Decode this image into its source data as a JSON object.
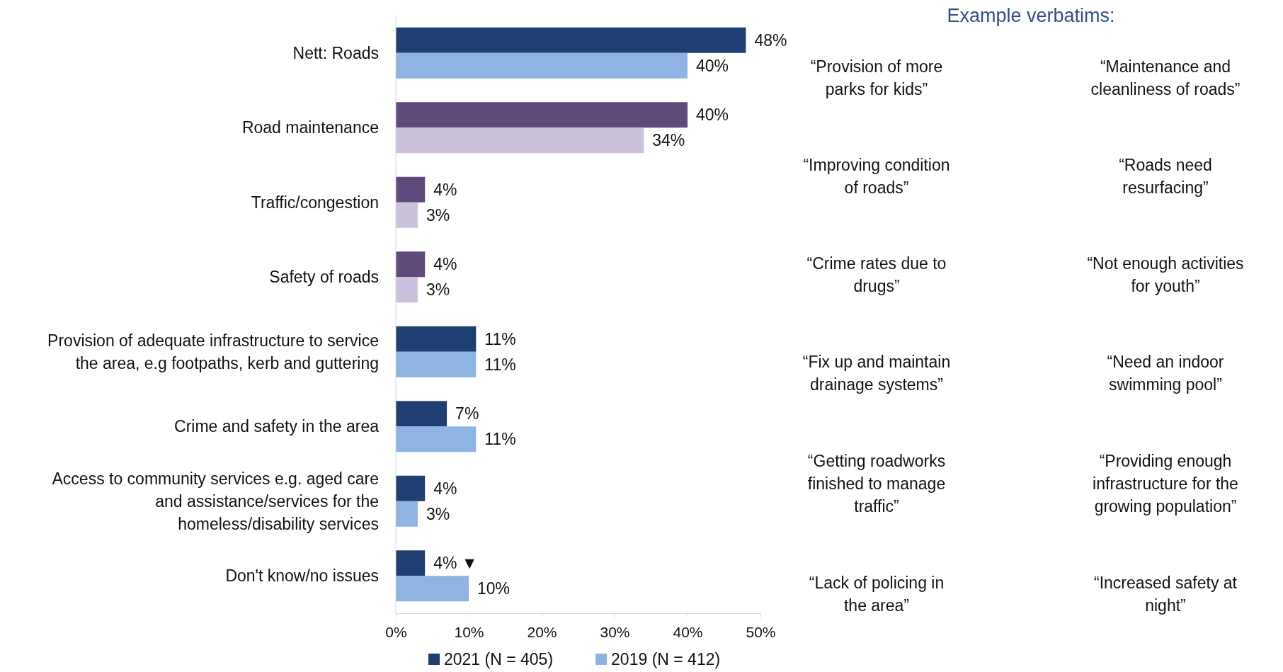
{
  "chart_data": {
    "type": "bar",
    "orientation": "horizontal",
    "categories": [
      "Nett: Roads",
      "Road maintenance",
      "Traffic/congestion",
      "Safety of roads",
      "Provision of adequate infrastructure to service the area, e.g footpaths, kerb and guttering",
      "Crime and safety in the area",
      "Access to community services e.g. aged care and assistance/services for the homeless/disability services",
      "Don't know/no issues"
    ],
    "series": [
      {
        "name": "2021 (N = 405)",
        "color": "#1f3f73",
        "colors": [
          "#1f3f73",
          "#5f4a7b",
          "#5f4a7b",
          "#5f4a7b",
          "#1f3f73",
          "#1f3f73",
          "#1f3f73",
          "#1f3f73"
        ],
        "values": [
          48,
          40,
          4,
          4,
          11,
          7,
          4,
          4
        ],
        "value_labels": [
          "48%",
          "40%",
          "4%",
          "4%",
          "11%",
          "7%",
          "4%",
          "4% ▼"
        ]
      },
      {
        "name": "2019 (N = 412)",
        "color": "#8db4e3",
        "colors": [
          "#8db4e3",
          "#ccc1dc",
          "#ccc1dc",
          "#ccc1dc",
          "#8db4e3",
          "#8db4e3",
          "#8db4e3",
          "#8db4e3"
        ],
        "values": [
          40,
          34,
          3,
          3,
          11,
          11,
          3,
          10
        ],
        "value_labels": [
          "40%",
          "34%",
          "3%",
          "3%",
          "11%",
          "11%",
          "3%",
          "10%"
        ]
      }
    ],
    "xlim": [
      0,
      50
    ],
    "xticks": [
      {
        "value": 0,
        "label": "0%"
      },
      {
        "value": 10,
        "label": "10%"
      },
      {
        "value": 20,
        "label": "20%"
      },
      {
        "value": 30,
        "label": "30%"
      },
      {
        "value": 40,
        "label": "40%"
      },
      {
        "value": 50,
        "label": "50%"
      }
    ],
    "grid": false,
    "legend": "bottom",
    "annotations": [
      "Example verbatims:",
      "“Provision of more parks for kids”",
      "“Maintenance and cleanliness of roads”",
      "“Improving condition of roads”",
      "“Roads need resurfacing”",
      "“Crime rates due to drugs”",
      "“Not enough activities for youth”",
      "“Fix up and maintain drainage systems”",
      "“Need an indoor swimming pool”",
      "“Getting roadworks finished to manage traffic”",
      "“Providing enough infrastructure for the growing population”",
      "“Lack of policing in the area”",
      "“Increased safety at night”"
    ]
  }
}
